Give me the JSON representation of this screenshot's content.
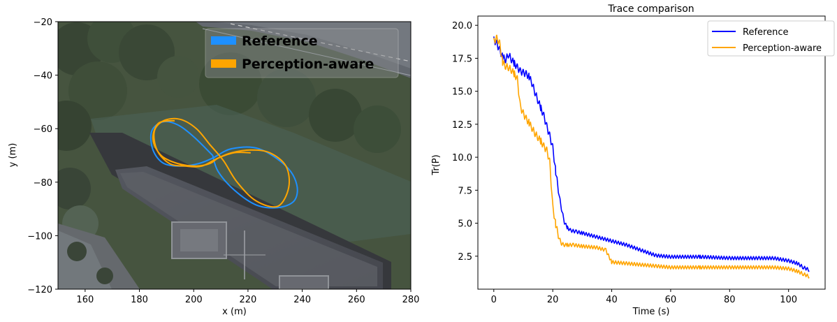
{
  "colors": {
    "reference": "#0000ff",
    "reference_map": "#1e90ff",
    "perception": "#ffa500"
  },
  "chart_data": [
    {
      "type": "line",
      "title": "",
      "xlabel": "x (m)",
      "ylabel": "y (m)",
      "xlim": [
        150,
        280
      ],
      "ylim": [
        -120,
        -20
      ],
      "xticks": [
        "160",
        "180",
        "200",
        "220",
        "240",
        "260",
        "280"
      ],
      "yticks": [
        "−120",
        "−100",
        "−80",
        "−60",
        "−40",
        "−20"
      ],
      "xtick_values": [
        160,
        180,
        200,
        220,
        240,
        260,
        280
      ],
      "ytick_values": [
        -120,
        -100,
        -80,
        -60,
        -40,
        -20
      ],
      "background": "aerial satellite photo",
      "legend_position": "top-right",
      "grid": false,
      "series": [
        {
          "name": "Reference",
          "color": "#1e90ff",
          "x": [
            207,
            200,
            194,
            188.5,
            184.5,
            185,
            189,
            196,
            202,
            207,
            214,
            224,
            234,
            238,
            237,
            231,
            223,
            215,
            209,
            207
          ],
          "y": [
            -70,
            -63,
            -58.5,
            -57.5,
            -61,
            -68,
            -73,
            -74,
            -73,
            -71,
            -67.5,
            -67.5,
            -74,
            -81,
            -87,
            -89.5,
            -88.5,
            -83,
            -76,
            -70
          ]
        },
        {
          "name": "Perception-aware",
          "color": "#ffa500",
          "x": [
            221,
            215,
            209,
            203,
            197,
            191,
            186.5,
            185.5,
            189,
            195,
            201,
            206,
            211,
            216,
            223,
            231,
            235,
            234,
            228,
            221,
            214,
            209,
            206,
            201,
            194,
            188,
            185,
            187,
            193
          ],
          "y": [
            -69,
            -69,
            -71,
            -74,
            -74,
            -73,
            -68,
            -61,
            -57,
            -56.5,
            -60,
            -66,
            -72,
            -80,
            -87,
            -89,
            -82,
            -74,
            -69,
            -68,
            -69,
            -71,
            -73,
            -74,
            -73,
            -70,
            -64,
            -58,
            -57
          ]
        }
      ]
    },
    {
      "type": "line",
      "title": "Trace comparison",
      "xlabel": "Time (s)",
      "ylabel": "Tr(P)",
      "xlim": [
        -5.4,
        112.4
      ],
      "ylim": [
        0.0,
        20.7
      ],
      "xticks": [
        "0",
        "20",
        "40",
        "60",
        "80",
        "100"
      ],
      "yticks": [
        "2.5",
        "5.0",
        "7.5",
        "10.0",
        "12.5",
        "15.0",
        "17.5",
        "20.0"
      ],
      "xtick_values": [
        0,
        20,
        40,
        60,
        80,
        100
      ],
      "ytick_values": [
        2.5,
        5.0,
        7.5,
        10.0,
        12.5,
        15.0,
        17.5,
        20.0
      ],
      "legend_position": "top-right",
      "grid": false,
      "series": [
        {
          "name": "Reference",
          "color": "#0000ff",
          "x": [
            0,
            1,
            2,
            3,
            4,
            5,
            6,
            7,
            8,
            9,
            10,
            11,
            12,
            13,
            14,
            15,
            16,
            17,
            18,
            19,
            20,
            21,
            22,
            23,
            24,
            25,
            26,
            28,
            30,
            35,
            40,
            45,
            50,
            55,
            60,
            70,
            80,
            90,
            95,
            100,
            103,
            105,
            107
          ],
          "y": [
            18.8,
            18.5,
            18.0,
            17.5,
            17.3,
            17.7,
            17.3,
            17.0,
            16.7,
            16.4,
            16.3,
            16.2,
            16.0,
            15.5,
            14.8,
            14.2,
            13.6,
            13.0,
            12.2,
            11.5,
            10.6,
            8.8,
            7.3,
            6.0,
            5.0,
            4.6,
            4.4,
            4.3,
            4.2,
            3.9,
            3.6,
            3.3,
            2.9,
            2.5,
            2.4,
            2.4,
            2.3,
            2.3,
            2.3,
            2.1,
            1.9,
            1.6,
            1.4
          ]
        },
        {
          "name": "Perception-aware",
          "color": "#ffa500",
          "x": [
            0,
            1,
            2,
            3,
            4,
            5,
            6,
            7,
            8,
            9,
            10,
            11,
            12,
            13,
            14,
            15,
            16,
            17,
            18,
            19,
            20,
            21,
            22,
            23,
            24,
            25,
            27,
            30,
            35,
            38,
            40,
            45,
            50,
            55,
            60,
            70,
            80,
            90,
            95,
            100,
            103,
            105,
            107
          ],
          "y": [
            18.7,
            18.9,
            18.5,
            17.1,
            16.8,
            16.7,
            16.5,
            16.2,
            15.8,
            13.7,
            13.2,
            12.8,
            12.5,
            12.1,
            11.7,
            11.4,
            11.1,
            10.7,
            10.4,
            9.5,
            6.1,
            4.8,
            3.9,
            3.4,
            3.3,
            3.3,
            3.3,
            3.2,
            3.1,
            2.9,
            2.0,
            1.9,
            1.8,
            1.7,
            1.6,
            1.6,
            1.6,
            1.6,
            1.6,
            1.5,
            1.3,
            1.1,
            0.9
          ]
        }
      ]
    }
  ]
}
